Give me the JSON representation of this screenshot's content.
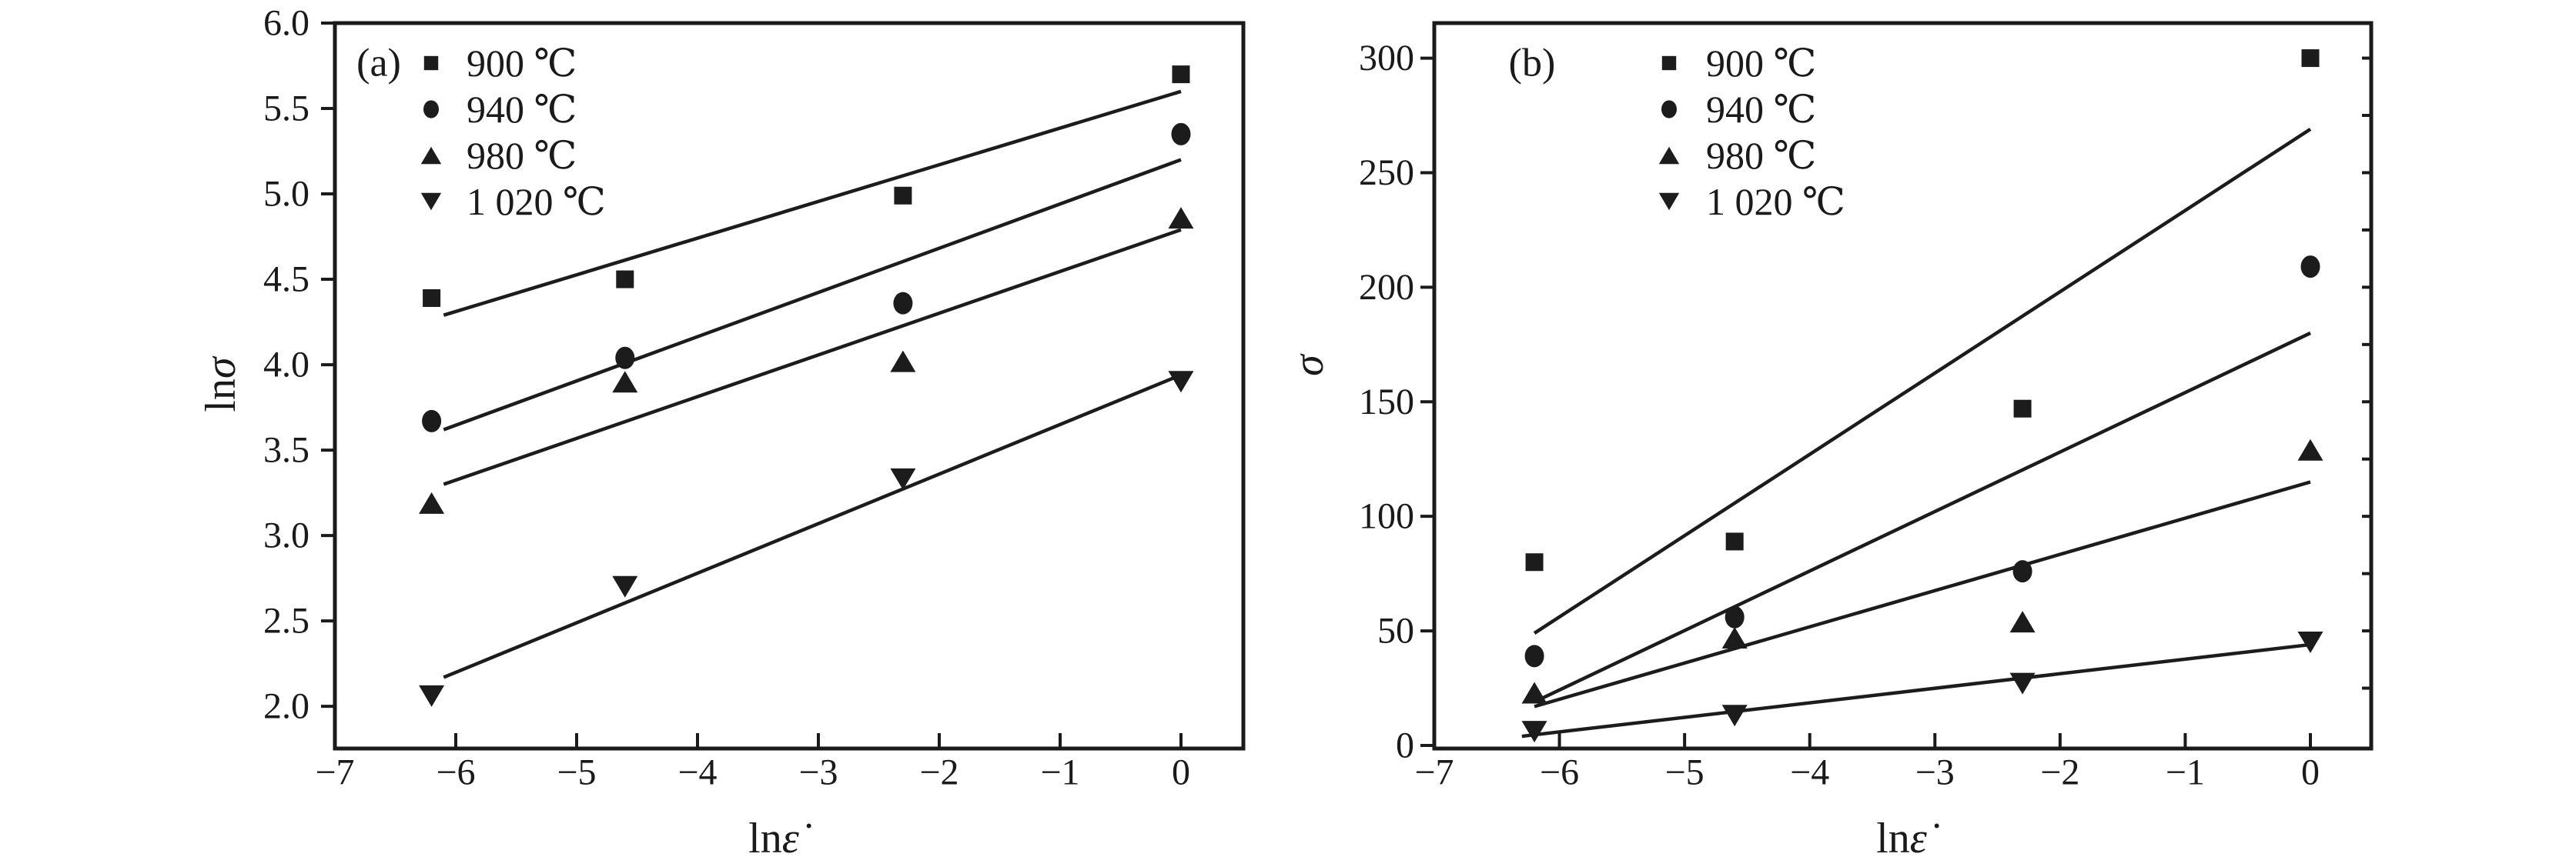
{
  "page": {
    "background": "#ffffff"
  },
  "colors": {
    "ink": "#1a1a1a",
    "line": "#1c1c1c",
    "marker_fill": "#1c1c1c"
  },
  "figure": {
    "description_visible_text_only": true
  },
  "chart_data": [
    {
      "id": "a",
      "panel_label": "(a)",
      "type": "scatter",
      "xlabel_roman": "ln",
      "xlabel_italic": "ε̇",
      "ylabel_roman": "ln",
      "ylabel_italic": "σ",
      "xlim": [
        -7,
        0.516
      ],
      "ylim": [
        1.753,
        6.0
      ],
      "grid": false,
      "legend_position": "top-left-inside",
      "x_ticks": [
        {
          "v": -7,
          "label": "−7"
        },
        {
          "v": -6,
          "label": "−6"
        },
        {
          "v": -5,
          "label": "−5"
        },
        {
          "v": -4,
          "label": "−4"
        },
        {
          "v": -3,
          "label": "−3"
        },
        {
          "v": -2,
          "label": "−2"
        },
        {
          "v": -1,
          "label": "−1"
        },
        {
          "v": 0,
          "label": "0"
        }
      ],
      "y_ticks": [
        {
          "v": 6.0,
          "label": "6.0"
        },
        {
          "v": 5.5,
          "label": "5.5"
        },
        {
          "v": 5.0,
          "label": "5.0"
        },
        {
          "v": 4.5,
          "label": "4.5"
        },
        {
          "v": 4.0,
          "label": "4.0"
        },
        {
          "v": 3.5,
          "label": "3.5"
        },
        {
          "v": 3.0,
          "label": "3.0"
        },
        {
          "v": 2.5,
          "label": "2.5"
        },
        {
          "v": 2.0,
          "label": "2.0"
        }
      ],
      "series": [
        {
          "name": "900 ℃",
          "marker": "square",
          "points": [
            [
              -6.2,
              4.39
            ],
            [
              -4.6,
              4.5
            ],
            [
              -2.3,
              4.99
            ],
            [
              0,
              5.7
            ]
          ],
          "fit_line": {
            "x1": -6.1,
            "y1": 4.29,
            "x2": 0,
            "y2": 5.6
          }
        },
        {
          "name": "940 ℃",
          "marker": "circle",
          "points": [
            [
              -6.2,
              3.67
            ],
            [
              -4.6,
              4.04
            ],
            [
              -2.3,
              4.36
            ],
            [
              0,
              5.35
            ]
          ],
          "fit_line": {
            "x1": -6.1,
            "y1": 3.62,
            "x2": 0,
            "y2": 5.2
          }
        },
        {
          "name": "980 ℃",
          "marker": "triangle-up",
          "points": [
            [
              -6.2,
              3.19
            ],
            [
              -4.6,
              3.9
            ],
            [
              -2.3,
              4.02
            ],
            [
              0,
              4.86
            ]
          ],
          "fit_line": {
            "x1": -6.1,
            "y1": 3.3,
            "x2": 0,
            "y2": 4.79
          }
        },
        {
          "name": "1 020 ℃",
          "marker": "triangle-down",
          "points": [
            [
              -6.2,
              2.06
            ],
            [
              -4.6,
              2.7
            ],
            [
              -2.3,
              3.33
            ],
            [
              0,
              3.9
            ]
          ],
          "fit_line": {
            "x1": -6.1,
            "y1": 2.17,
            "x2": 0,
            "y2": 3.94
          }
        }
      ]
    },
    {
      "id": "b",
      "panel_label": "(b)",
      "type": "scatter",
      "xlabel_roman": "ln",
      "xlabel_italic": "ε̇",
      "ylabel_roman": "",
      "ylabel_italic": "σ",
      "xlim": [
        -7,
        0.486
      ],
      "ylim": [
        -1.35,
        315.3
      ],
      "grid": false,
      "legend_position": "top-left-inside",
      "right_axis_minor_tick_step": 25,
      "x_ticks": [
        {
          "v": -7,
          "label": "−7"
        },
        {
          "v": -6,
          "label": "−6"
        },
        {
          "v": -5,
          "label": "−5"
        },
        {
          "v": -4,
          "label": "−4"
        },
        {
          "v": -3,
          "label": "−3"
        },
        {
          "v": -2,
          "label": "−2"
        },
        {
          "v": -1,
          "label": "−1"
        },
        {
          "v": 0,
          "label": "0"
        }
      ],
      "y_ticks": [
        {
          "v": 300,
          "label": "300"
        },
        {
          "v": 250,
          "label": "250"
        },
        {
          "v": 200,
          "label": "200"
        },
        {
          "v": 150,
          "label": "150"
        },
        {
          "v": 100,
          "label": "100"
        },
        {
          "v": 50,
          "label": "50"
        },
        {
          "v": 0,
          "label": "0"
        }
      ],
      "series": [
        {
          "name": "900 ℃",
          "marker": "square",
          "points": [
            [
              -6.2,
              80
            ],
            [
              -4.6,
              89
            ],
            [
              -2.3,
              147
            ],
            [
              0,
              300
            ]
          ],
          "fit_line": {
            "x1": -6.2,
            "y1": 49,
            "x2": 0,
            "y2": 269
          }
        },
        {
          "name": "940 ℃",
          "marker": "circle",
          "points": [
            [
              -6.2,
              39
            ],
            [
              -4.6,
              56
            ],
            [
              -2.3,
              76
            ],
            [
              0,
              209
            ]
          ],
          "fit_line": {
            "x1": -6.2,
            "y1": 19,
            "x2": 0,
            "y2": 180
          }
        },
        {
          "name": "980 ℃",
          "marker": "triangle-up",
          "points": [
            [
              -6.2,
              23
            ],
            [
              -4.6,
              47
            ],
            [
              -2.3,
              54
            ],
            [
              0,
              129
            ]
          ],
          "fit_line": {
            "x1": -6.2,
            "y1": 17,
            "x2": 0,
            "y2": 115
          }
        },
        {
          "name": "1 020 ℃",
          "marker": "triangle-down",
          "points": [
            [
              -6.2,
              6
            ],
            [
              -4.6,
              13
            ],
            [
              -2.3,
              27
            ],
            [
              0,
              45
            ]
          ],
          "fit_line": {
            "x1": -6.3,
            "y1": 4,
            "x2": 0,
            "y2": 44
          }
        }
      ]
    }
  ]
}
